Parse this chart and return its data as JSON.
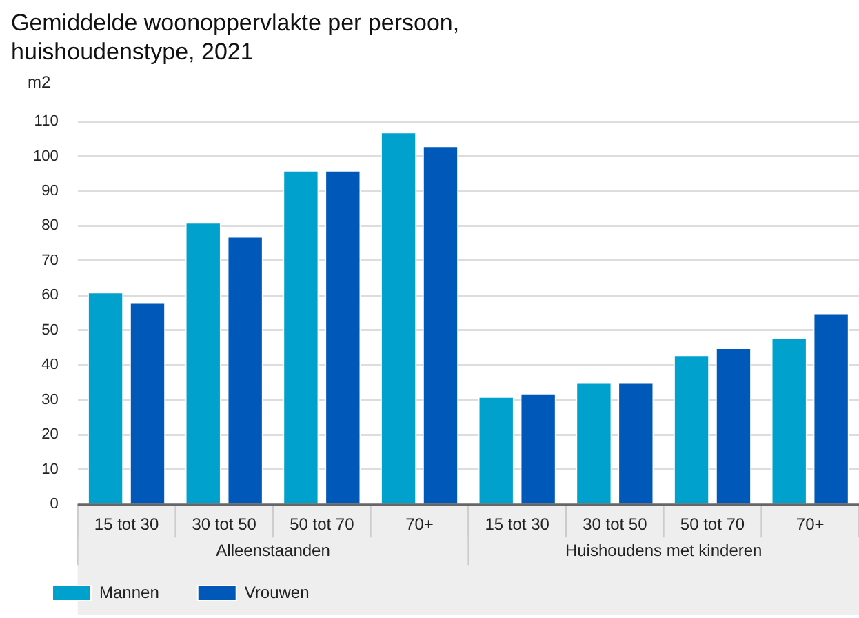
{
  "chart_data": {
    "type": "bar",
    "title": "Gemiddelde woonoppervlakte per persoon, huishoudenstype, 2021",
    "ylabel": "m2",
    "categories": [
      "15 tot 30",
      "30 tot 50",
      "50 tot 70",
      "70+",
      "15 tot 30",
      "30 tot 50",
      "50 tot 70",
      "70+"
    ],
    "annotations": [
      "Alleenstaanden",
      "Huishoudens met kinderen"
    ],
    "series": [
      {
        "name": "Mannen",
        "color": "#00a1cd",
        "values": [
          61,
          81,
          96,
          107,
          31,
          35,
          43,
          48
        ]
      },
      {
        "name": "Vrouwen",
        "color": "#0058b8",
        "values": [
          58,
          77,
          96,
          103,
          32,
          35,
          45,
          55
        ]
      }
    ],
    "ylim": [
      0,
      110
    ],
    "yticks": [
      0,
      10,
      20,
      30,
      40,
      50,
      60,
      70,
      80,
      90,
      100,
      110
    ],
    "grid": "y",
    "legend": "bottom left"
  }
}
